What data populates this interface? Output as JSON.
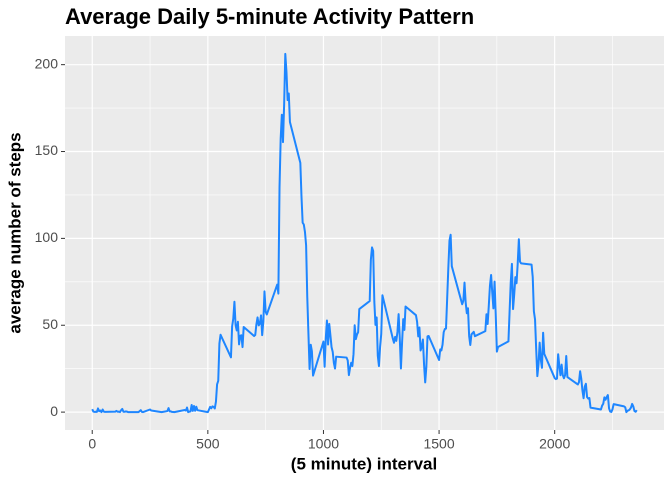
{
  "chart_data": {
    "type": "line",
    "title": "Average Daily 5-minute Activity Pattern",
    "x_label": "(5 minute) interval",
    "y_label": "average number of steps",
    "x": [
      0,
      5,
      10,
      15,
      20,
      25,
      30,
      35,
      40,
      45,
      50,
      55,
      100,
      105,
      110,
      115,
      120,
      125,
      130,
      135,
      140,
      145,
      150,
      155,
      200,
      210,
      215,
      220,
      250,
      255,
      300,
      325,
      330,
      335,
      340,
      345,
      355,
      400,
      405,
      410,
      415,
      420,
      425,
      430,
      435,
      440,
      445,
      450,
      455,
      500,
      505,
      510,
      515,
      520,
      525,
      530,
      535,
      540,
      545,
      550,
      555,
      600,
      605,
      610,
      615,
      620,
      625,
      630,
      635,
      640,
      645,
      650,
      655,
      700,
      705,
      710,
      715,
      720,
      725,
      730,
      735,
      740,
      745,
      750,
      755,
      800,
      805,
      810,
      815,
      820,
      825,
      830,
      835,
      840,
      845,
      850,
      855,
      900,
      905,
      910,
      915,
      920,
      925,
      930,
      935,
      940,
      945,
      950,
      955,
      1000,
      1005,
      1010,
      1015,
      1020,
      1025,
      1030,
      1035,
      1040,
      1045,
      1050,
      1055,
      1100,
      1105,
      1110,
      1115,
      1120,
      1125,
      1130,
      1135,
      1140,
      1145,
      1150,
      1155,
      1200,
      1205,
      1210,
      1215,
      1220,
      1225,
      1230,
      1235,
      1240,
      1245,
      1250,
      1255,
      1300,
      1305,
      1310,
      1315,
      1320,
      1325,
      1330,
      1335,
      1340,
      1345,
      1350,
      1355,
      1400,
      1405,
      1410,
      1415,
      1420,
      1425,
      1430,
      1435,
      1440,
      1445,
      1450,
      1455,
      1500,
      1505,
      1510,
      1515,
      1520,
      1525,
      1530,
      1535,
      1540,
      1545,
      1550,
      1555,
      1600,
      1605,
      1610,
      1615,
      1620,
      1625,
      1630,
      1635,
      1640,
      1645,
      1650,
      1655,
      1700,
      1705,
      1710,
      1715,
      1720,
      1725,
      1730,
      1735,
      1740,
      1745,
      1750,
      1755,
      1800,
      1805,
      1810,
      1815,
      1820,
      1825,
      1830,
      1835,
      1840,
      1845,
      1850,
      1855,
      1900,
      1905,
      1910,
      1915,
      1920,
      1925,
      1930,
      1935,
      1940,
      1945,
      1950,
      1955,
      2000,
      2005,
      2010,
      2015,
      2020,
      2025,
      2030,
      2035,
      2040,
      2045,
      2050,
      2055,
      2100,
      2105,
      2110,
      2115,
      2120,
      2125,
      2130,
      2135,
      2140,
      2145,
      2150,
      2155,
      2200,
      2205,
      2210,
      2215,
      2220,
      2225,
      2230,
      2235,
      2240,
      2245,
      2250,
      2255,
      2300,
      2305,
      2310,
      2315,
      2320,
      2325,
      2330,
      2335,
      2340,
      2345,
      2350,
      2355
    ],
    "series": [
      {
        "color": "#1e86ff",
        "values": [
          1.7,
          0.3,
          0.1,
          0.2,
          0.1,
          2.1,
          0.5,
          0.9,
          0,
          1.5,
          0.3,
          0.1,
          0.3,
          0.7,
          0.2,
          0.3,
          0,
          1.1,
          1.8,
          0.2,
          0.2,
          0.4,
          0.3,
          0,
          0,
          1.1,
          0.1,
          0,
          1.5,
          0.9,
          0,
          0.6,
          2.3,
          0.4,
          0.4,
          0.1,
          0,
          1.2,
          0.9,
          2.6,
          0,
          0.3,
          0.4,
          4.1,
          0.7,
          3.5,
          0.8,
          3.1,
          1.1,
          0,
          1.5,
          3.0,
          2.2,
          3.3,
          3.0,
          2.1,
          6,
          16,
          18,
          39.5,
          44.5,
          31.5,
          49.3,
          53.8,
          63.5,
          50,
          47,
          52,
          39,
          44,
          44.2,
          37.4,
          49,
          43.8,
          44.4,
          50.5,
          54.5,
          49.9,
          51,
          55.7,
          44.3,
          52.3,
          69.5,
          57.8,
          56.2,
          73.4,
          68.2,
          129.4,
          157.5,
          171.2,
          155.4,
          177.3,
          206.2,
          195.9,
          179.6,
          183.4,
          167,
          143.5,
          124,
          109,
          108,
          103.7,
          96,
          66.2,
          45.2,
          24.8,
          38.8,
          35,
          21,
          40.6,
          26.1,
          42.4,
          52.7,
          38.9,
          50.8,
          44.3,
          37.4,
          34.7,
          28.3,
          25.1,
          31.9,
          31.4,
          29.7,
          21.3,
          25.5,
          28.4,
          26.5,
          33.4,
          50,
          42,
          44.6,
          46,
          59.3,
          63.9,
          87.7,
          94.8,
          92.8,
          63.4,
          50.2,
          54.5,
          32.4,
          26.5,
          37.7,
          45.1,
          67.3,
          42.3,
          39.9,
          43.3,
          41,
          46.2,
          56.4,
          42.8,
          25.1,
          40,
          53.5,
          47.3,
          60.8,
          55.8,
          52,
          43.6,
          48.7,
          35.5,
          37.5,
          41.8,
          27.5,
          17.1,
          26.1,
          43.6,
          43.8,
          30,
          36.1,
          35.5,
          38.8,
          46,
          47.8,
          48.1,
          65.3,
          82.9,
          98.7,
          102.1,
          84,
          62.1,
          64.1,
          74.5,
          63.2,
          56.9,
          59.8,
          43.9,
          38.6,
          44.7,
          45.5,
          46.2,
          43.7,
          46.6,
          56.3,
          50.7,
          61.2,
          72.7,
          78.9,
          68.9,
          59.7,
          75.1,
          56.5,
          34.8,
          37.5,
          40.7,
          58,
          74.7,
          85.3,
          59.3,
          67.8,
          77.7,
          74.2,
          85.3,
          99.5,
          86.6,
          85.6,
          84.9,
          77.8,
          58,
          53.4,
          36.3,
          20.7,
          27.4,
          40,
          30.2,
          25.5,
          45.7,
          33.5,
          19.6,
          19,
          19.3,
          33.3,
          26.8,
          21.2,
          27.3,
          21.3,
          19.5,
          21.3,
          32.3,
          20.2,
          15.9,
          17.2,
          23.5,
          19.2,
          12.5,
          8,
          14.7,
          16.3,
          8.7,
          7.8,
          8.1,
          2.6,
          1.5,
          3.7,
          4.8,
          8.5,
          7.1,
          8.7,
          9.8,
          2.2,
          0.3,
          0.1,
          1.6,
          4.6,
          3.3,
          2.8,
          0,
          0.8,
          1,
          1.6,
          2.6,
          4.7,
          3.3,
          0.6,
          0.2,
          1.1
        ]
      }
    ],
    "xlim": [
      -117.75,
      2472.75
    ],
    "ylim": [
      -10.3,
      216.5
    ],
    "xticks": [
      0,
      500,
      1000,
      1500,
      2000
    ],
    "yticks": [
      0,
      50,
      100,
      150,
      200
    ],
    "x_minor_ticks": [
      250,
      750,
      1250,
      1750,
      2250
    ],
    "y_minor_ticks": [
      25,
      75,
      125,
      175
    ],
    "grid": true
  }
}
